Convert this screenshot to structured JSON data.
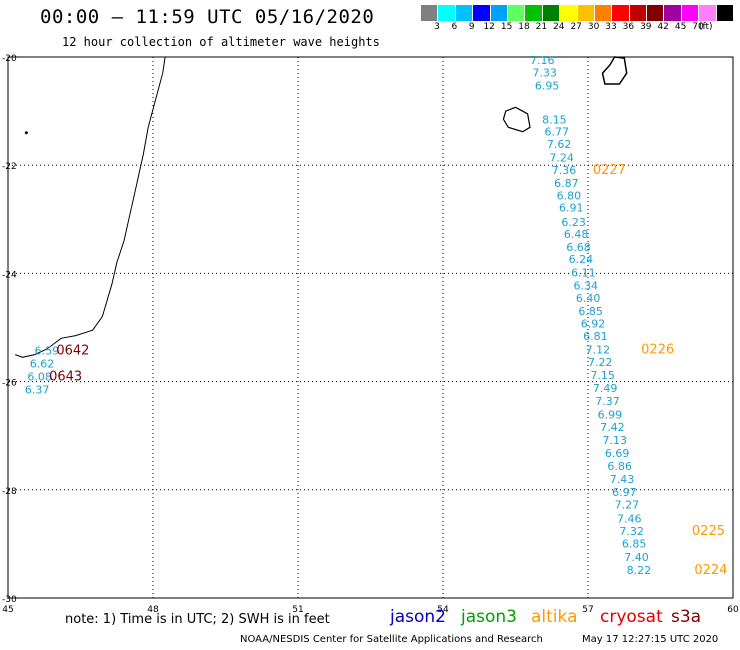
{
  "header": {
    "title": "00:00 – 11:59 UTC 05/16/2020",
    "subtitle": "12 hour collection of altimeter wave heights"
  },
  "color_scale": {
    "colors": [
      "#808080",
      "#00ffff",
      "#00c0ff",
      "#0000ff",
      "#00a0ff",
      "#60ff60",
      "#00c000",
      "#008000",
      "#ffff00",
      "#ffc000",
      "#ff8000",
      "#ff0000",
      "#c00000",
      "#800000",
      "#a000a0",
      "#ff00ff",
      "#ff80ff",
      "#000000"
    ],
    "labels": [
      "3",
      "6",
      "9",
      "12",
      "15",
      "18",
      "21",
      "24",
      "27",
      "30",
      "33",
      "36",
      "39",
      "42",
      "45",
      "70"
    ],
    "unit": "(ft)"
  },
  "map": {
    "lat_ticks": [
      "-20",
      "-22",
      "-24",
      "-26",
      "-28",
      "-30"
    ],
    "lon_ticks": [
      "45",
      "48",
      "51",
      "54",
      "57",
      "60"
    ],
    "jason3_track": [
      {
        "lon": 55.8,
        "lat": -20.13,
        "v": "7.16"
      },
      {
        "lon": 55.85,
        "lat": -20.36,
        "v": "7.33"
      },
      {
        "lon": 55.9,
        "lat": -20.6,
        "v": "6.95"
      },
      {
        "lon": 56.05,
        "lat": -21.23,
        "v": "8.15"
      },
      {
        "lon": 56.1,
        "lat": -21.45,
        "v": "6.77"
      },
      {
        "lon": 56.15,
        "lat": -21.68,
        "v": "7.62"
      },
      {
        "lon": 56.2,
        "lat": -21.93,
        "v": "7.24"
      },
      {
        "lon": 56.25,
        "lat": -22.16,
        "v": "7.36"
      },
      {
        "lon": 56.3,
        "lat": -22.4,
        "v": "6.87"
      },
      {
        "lon": 56.35,
        "lat": -22.63,
        "v": "6.80"
      },
      {
        "lon": 56.4,
        "lat": -22.86,
        "v": "6.91"
      },
      {
        "lon": 56.45,
        "lat": -23.12,
        "v": "6.23"
      },
      {
        "lon": 56.5,
        "lat": -23.35,
        "v": "6.48"
      },
      {
        "lon": 56.55,
        "lat": -23.59,
        "v": "6.68"
      },
      {
        "lon": 56.6,
        "lat": -23.81,
        "v": "6.24"
      },
      {
        "lon": 56.65,
        "lat": -24.06,
        "v": "6.11"
      },
      {
        "lon": 56.7,
        "lat": -24.3,
        "v": "6.34"
      },
      {
        "lon": 56.75,
        "lat": -24.53,
        "v": "6.40"
      },
      {
        "lon": 56.8,
        "lat": -24.77,
        "v": "6.85"
      },
      {
        "lon": 56.85,
        "lat": -25.0,
        "v": "6.92"
      },
      {
        "lon": 56.9,
        "lat": -25.23,
        "v": "6.81"
      },
      {
        "lon": 56.95,
        "lat": -25.48,
        "v": "7.12"
      },
      {
        "lon": 57.0,
        "lat": -25.71,
        "v": "7.22"
      },
      {
        "lon": 57.05,
        "lat": -25.95,
        "v": "7.15"
      },
      {
        "lon": 57.1,
        "lat": -26.19,
        "v": "7.49"
      },
      {
        "lon": 57.15,
        "lat": -26.43,
        "v": "7.37"
      },
      {
        "lon": 57.2,
        "lat": -26.68,
        "v": "6.99"
      },
      {
        "lon": 57.25,
        "lat": -26.91,
        "v": "7.42"
      },
      {
        "lon": 57.3,
        "lat": -27.15,
        "v": "7.13"
      },
      {
        "lon": 57.35,
        "lat": -27.39,
        "v": "6.69"
      },
      {
        "lon": 57.4,
        "lat": -27.63,
        "v": "6.86"
      },
      {
        "lon": 57.45,
        "lat": -27.87,
        "v": "7.43"
      },
      {
        "lon": 57.5,
        "lat": -28.11,
        "v": "6.97"
      },
      {
        "lon": 57.55,
        "lat": -28.35,
        "v": "7.27"
      },
      {
        "lon": 57.6,
        "lat": -28.6,
        "v": "7.46"
      },
      {
        "lon": 57.65,
        "lat": -28.84,
        "v": "7.32"
      },
      {
        "lon": 57.7,
        "lat": -29.07,
        "v": "6.85"
      },
      {
        "lon": 57.75,
        "lat": -29.32,
        "v": "7.40"
      },
      {
        "lon": 57.8,
        "lat": -29.56,
        "v": "8.22"
      }
    ],
    "west_track": [
      {
        "lon": 45.55,
        "lat": -25.5,
        "v": "6.59"
      },
      {
        "lon": 45.45,
        "lat": -25.74,
        "v": "6.62"
      },
      {
        "lon": 45.4,
        "lat": -25.98,
        "v": "6.08"
      },
      {
        "lon": 45.35,
        "lat": -26.22,
        "v": "6.37"
      }
    ],
    "time_labels": [
      {
        "lon": 57.1,
        "lat": -22.16,
        "text": "0227",
        "sat": "altika"
      },
      {
        "lon": 58.1,
        "lat": -25.48,
        "text": "0226",
        "sat": "altika"
      },
      {
        "lon": 59.15,
        "lat": -28.84,
        "text": "0225",
        "sat": "altika"
      },
      {
        "lon": 59.2,
        "lat": -29.56,
        "text": "0224",
        "sat": "altika"
      },
      {
        "lon": 46.0,
        "lat": -25.5,
        "text": "0642",
        "sat": "s3a"
      },
      {
        "lon": 45.85,
        "lat": -25.98,
        "text": "0643",
        "sat": "s3a"
      }
    ]
  },
  "legend": {
    "note": "note: 1) Time is in UTC; 2) SWH is in feet",
    "satellites": [
      {
        "name": "jason2",
        "color": "#0000c8"
      },
      {
        "name": "jason3",
        "color": "#00a000"
      },
      {
        "name": "altika",
        "color": "#ff9900"
      },
      {
        "name": "cryosat",
        "color": "#e00000"
      },
      {
        "name": "s3a",
        "color": "#800000"
      }
    ]
  },
  "footer": {
    "credit": "NOAA/NESDIS Center for Satellite Applications and Research",
    "timestamp": "May 17 12:27:15 UTC 2020"
  },
  "colors": {
    "jason3_value": "#1ea0d0",
    "altika_time": "#ff9900",
    "s3a_time": "#800000",
    "grid": "#000000"
  }
}
